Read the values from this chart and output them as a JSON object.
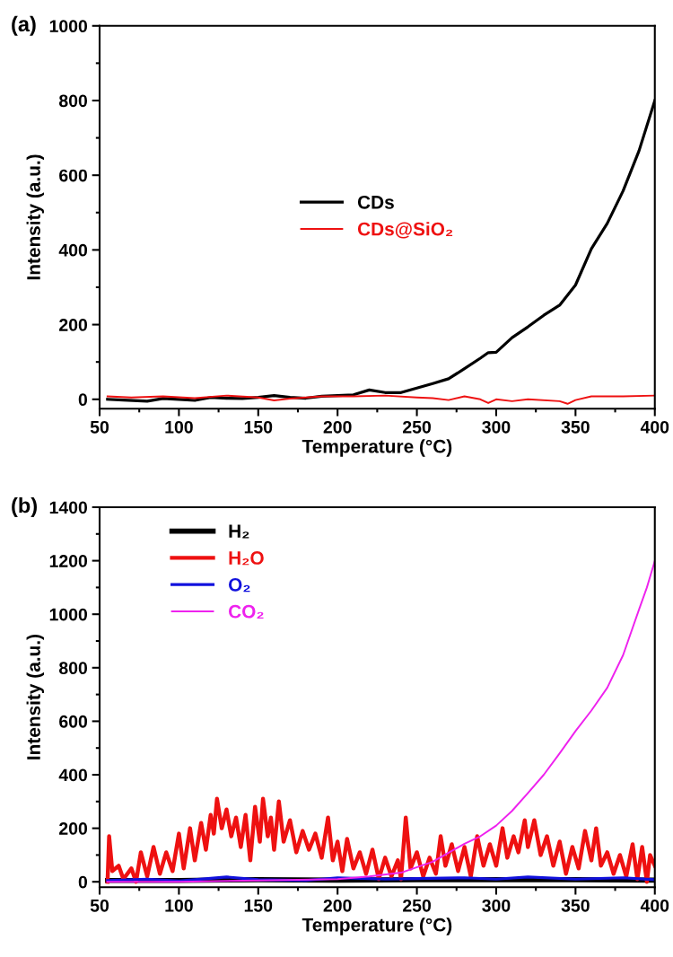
{
  "chart_data": [
    {
      "type": "line",
      "title": "(a)",
      "xlabel": "Temperature (°C)",
      "ylabel": "Intensity (a.u.)",
      "xlim": [
        50,
        400
      ],
      "ylim": [
        -25,
        1000
      ],
      "xticks": [
        50,
        100,
        150,
        200,
        250,
        300,
        350,
        400
      ],
      "yticks": [
        0,
        200,
        400,
        600,
        800,
        1000
      ],
      "legend": "center",
      "grid": false,
      "series": [
        {
          "name": "CDs",
          "color": "#000000",
          "x": [
            55,
            65,
            80,
            90,
            100,
            110,
            120,
            130,
            140,
            150,
            160,
            170,
            180,
            190,
            200,
            210,
            220,
            230,
            240,
            250,
            260,
            270,
            280,
            290,
            295,
            300,
            310,
            320,
            330,
            340,
            350,
            360,
            370,
            380,
            390,
            400
          ],
          "values": [
            0,
            -2,
            -5,
            2,
            0,
            -3,
            5,
            3,
            2,
            5,
            10,
            5,
            3,
            8,
            10,
            12,
            25,
            18,
            18,
            30,
            42,
            55,
            82,
            110,
            125,
            126,
            165,
            194,
            225,
            252,
            306,
            403,
            471,
            558,
            665,
            800
          ]
        },
        {
          "name": "CDs@SiO₂",
          "color": "#ee1111",
          "x": [
            55,
            70,
            90,
            110,
            130,
            150,
            160,
            170,
            190,
            210,
            230,
            250,
            260,
            270,
            280,
            290,
            295,
            300,
            310,
            320,
            340,
            345,
            350,
            360,
            380,
            400
          ],
          "values": [
            8,
            5,
            8,
            3,
            10,
            5,
            -3,
            2,
            8,
            8,
            10,
            5,
            3,
            -2,
            8,
            0,
            -10,
            0,
            -5,
            0,
            -5,
            -12,
            -2,
            8,
            8,
            10
          ]
        }
      ]
    },
    {
      "type": "line",
      "title": "(b)",
      "xlabel": "Temperature (°C)",
      "ylabel": "Intensity (a.u.)",
      "xlim": [
        50,
        400
      ],
      "ylim": [
        -20,
        1400
      ],
      "xticks": [
        50,
        100,
        150,
        200,
        250,
        300,
        350,
        400
      ],
      "yticks": [
        0,
        200,
        400,
        600,
        800,
        1000,
        1200,
        1400
      ],
      "legend": "upper left",
      "grid": false,
      "series": [
        {
          "name": "H₂",
          "color": "#000000",
          "x": [
            55,
            100,
            150,
            200,
            250,
            300,
            350,
            400
          ],
          "values": [
            5,
            5,
            8,
            6,
            8,
            8,
            8,
            6
          ]
        },
        {
          "name": "H₂O",
          "color": "#ee1111",
          "x": [
            55,
            56,
            58,
            62,
            65,
            70,
            73,
            76,
            80,
            84,
            88,
            92,
            96,
            100,
            103,
            107,
            110,
            114,
            117,
            120,
            122,
            124,
            127,
            130,
            133,
            136,
            139,
            142,
            145,
            148,
            151,
            153,
            156,
            158,
            160,
            163,
            166,
            170,
            174,
            178,
            182,
            186,
            190,
            194,
            197,
            200,
            203,
            206,
            210,
            214,
            218,
            222,
            226,
            230,
            234,
            238,
            240,
            243,
            246,
            250,
            254,
            258,
            262,
            265,
            268,
            272,
            276,
            280,
            284,
            288,
            292,
            296,
            300,
            304,
            307,
            311,
            314,
            318,
            320,
            324,
            328,
            332,
            336,
            340,
            344,
            348,
            352,
            356,
            360,
            363,
            366,
            370,
            374,
            378,
            382,
            386,
            389,
            392,
            395,
            397,
            400
          ],
          "values": [
            0,
            170,
            40,
            60,
            10,
            50,
            0,
            110,
            20,
            130,
            30,
            110,
            40,
            180,
            50,
            200,
            80,
            220,
            120,
            250,
            180,
            310,
            200,
            270,
            170,
            240,
            130,
            250,
            80,
            280,
            150,
            310,
            170,
            240,
            120,
            300,
            150,
            230,
            110,
            190,
            120,
            180,
            90,
            240,
            80,
            150,
            40,
            160,
            50,
            110,
            30,
            120,
            10,
            90,
            20,
            80,
            10,
            240,
            50,
            110,
            20,
            90,
            30,
            170,
            60,
            140,
            40,
            130,
            20,
            170,
            60,
            140,
            60,
            200,
            90,
            170,
            110,
            230,
            130,
            230,
            100,
            170,
            60,
            150,
            30,
            130,
            50,
            190,
            80,
            200,
            60,
            110,
            30,
            100,
            20,
            140,
            10,
            130,
            0,
            100,
            60
          ]
        },
        {
          "name": "O₂",
          "color": "#1111dd",
          "x": [
            55,
            80,
            100,
            130,
            150,
            180,
            200,
            230,
            250,
            280,
            300,
            320,
            350,
            380,
            400
          ],
          "values": [
            5,
            10,
            3,
            18,
            8,
            5,
            15,
            10,
            12,
            15,
            10,
            18,
            10,
            15,
            8
          ]
        },
        {
          "name": "CO₂",
          "color": "#ee22ee",
          "x": [
            55,
            100,
            150,
            200,
            220,
            240,
            260,
            280,
            290,
            300,
            310,
            320,
            330,
            340,
            350,
            360,
            370,
            380,
            390,
            395,
            400
          ],
          "values": [
            0,
            0,
            5,
            10,
            20,
            34,
            75,
            142,
            170,
            210,
            265,
            332,
            400,
            480,
            563,
            640,
            725,
            847,
            1017,
            1100,
            1200
          ]
        }
      ]
    }
  ]
}
